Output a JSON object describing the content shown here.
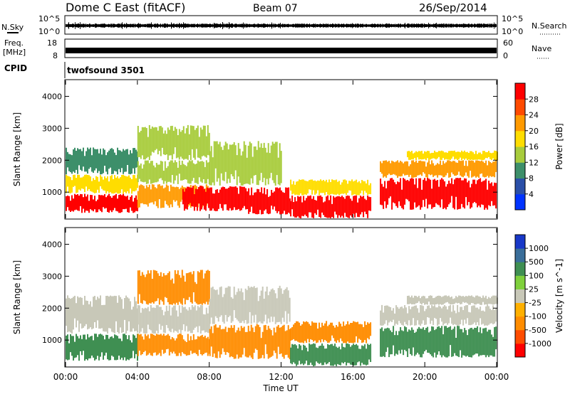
{
  "header": {
    "station": "Dome C East (fitACF)",
    "beam": "Beam 07",
    "date": "26/Sep/2014"
  },
  "strip_panels": {
    "nsky": {
      "label": "N.Sky",
      "right_label": "N.Search",
      "top_tick": "10^5",
      "bottom_tick": "10^0"
    },
    "freq": {
      "label_line1": "Freq.",
      "label_line2": "[MHz]",
      "top_tick": "18",
      "bottom_tick": "8",
      "right_label": "Nave",
      "right_top_tick": "60",
      "right_bottom_tick": "0"
    },
    "cpid": {
      "label": "CPID",
      "value": "twofsound 3501"
    }
  },
  "colors": {
    "power": [
      "#0033ff",
      "#2a4fa8",
      "#3d8f6a",
      "#a8cc3c",
      "#ffdd00",
      "#ff9a00",
      "#ff4a00",
      "#ff0000"
    ],
    "velocity": [
      "#ff0000",
      "#ff4c00",
      "#ff8c00",
      "#ffb000",
      "#c8c8b8",
      "#7fd03c",
      "#3f8f52",
      "#3a6e9a",
      "#1838c8"
    ]
  },
  "chart_data": [
    {
      "type": "heatmap",
      "panel": "power",
      "ylabel": "Slant Range [km]",
      "ylim": [
        180,
        4500
      ],
      "yticks": [
        "1000",
        "2000",
        "3000",
        "4000"
      ],
      "colorbar_label": "Power [dB]",
      "colorbar_ticks": [
        "4",
        "8",
        "12",
        "16",
        "20",
        "24",
        "28"
      ],
      "colorbar_range": [
        0,
        32
      ],
      "x_range_hours": [
        0,
        24
      ],
      "regions": [
        {
          "x0": 0.0,
          "x1": 4.0,
          "y0": 350,
          "y1": 950,
          "level": 7
        },
        {
          "x0": 0.0,
          "x1": 4.0,
          "y0": 950,
          "y1": 1550,
          "level": 4
        },
        {
          "x0": 0.0,
          "x1": 4.0,
          "y0": 1550,
          "y1": 2400,
          "level": 2
        },
        {
          "x0": 4.0,
          "x1": 8.0,
          "y0": 500,
          "y1": 1250,
          "level": 5
        },
        {
          "x0": 4.0,
          "x1": 8.0,
          "y0": 1250,
          "y1": 2000,
          "level": 3
        },
        {
          "x0": 4.0,
          "x1": 8.0,
          "y0": 2000,
          "y1": 3100,
          "level": 3
        },
        {
          "x0": 6.5,
          "x1": 10.0,
          "y0": 400,
          "y1": 1200,
          "level": 7
        },
        {
          "x0": 8.0,
          "x1": 12.0,
          "y0": 1200,
          "y1": 2600,
          "level": 3
        },
        {
          "x0": 10.0,
          "x1": 12.5,
          "y0": 300,
          "y1": 1150,
          "level": 7
        },
        {
          "x0": 12.5,
          "x1": 17.0,
          "y0": 180,
          "y1": 900,
          "level": 7
        },
        {
          "x0": 12.5,
          "x1": 17.0,
          "y0": 900,
          "y1": 1400,
          "level": 4
        },
        {
          "x0": 17.5,
          "x1": 24.0,
          "y0": 450,
          "y1": 1450,
          "level": 7
        },
        {
          "x0": 17.5,
          "x1": 24.0,
          "y0": 1450,
          "y1": 2000,
          "level": 5
        },
        {
          "x0": 19.0,
          "x1": 24.0,
          "y0": 2000,
          "y1": 2300,
          "level": 4
        }
      ]
    },
    {
      "type": "heatmap",
      "panel": "velocity",
      "ylabel": "Slant Range [km]",
      "ylim": [
        180,
        4500
      ],
      "yticks": [
        "1000",
        "2000",
        "3000",
        "4000"
      ],
      "xlabel": "Time UT",
      "xticks": [
        "00:00",
        "04:00",
        "08:00",
        "12:00",
        "16:00",
        "20:00",
        "00:00"
      ],
      "colorbar_label": "Velocity [m s^-1]",
      "colorbar_ticks": [
        "-1000",
        "-500",
        "-100",
        "-25",
        "25",
        "100",
        "500",
        "1000"
      ],
      "x_range_hours": [
        0,
        24
      ],
      "regions": [
        {
          "x0": 0.0,
          "x1": 4.0,
          "y0": 350,
          "y1": 1200,
          "level": 6
        },
        {
          "x0": 0.0,
          "x1": 4.0,
          "y0": 1200,
          "y1": 2400,
          "level": 4
        },
        {
          "x0": 4.0,
          "x1": 8.0,
          "y0": 500,
          "y1": 1200,
          "level": 2
        },
        {
          "x0": 4.0,
          "x1": 8.0,
          "y0": 1200,
          "y1": 2100,
          "level": 4
        },
        {
          "x0": 4.0,
          "x1": 8.0,
          "y0": 2100,
          "y1": 3200,
          "level": 2
        },
        {
          "x0": 8.0,
          "x1": 12.5,
          "y0": 400,
          "y1": 1500,
          "level": 2
        },
        {
          "x0": 8.0,
          "x1": 12.5,
          "y0": 1500,
          "y1": 2700,
          "level": 4
        },
        {
          "x0": 12.5,
          "x1": 17.0,
          "y0": 180,
          "y1": 900,
          "level": 6
        },
        {
          "x0": 12.5,
          "x1": 17.0,
          "y0": 900,
          "y1": 1600,
          "level": 2
        },
        {
          "x0": 17.5,
          "x1": 24.0,
          "y0": 450,
          "y1": 1450,
          "level": 6
        },
        {
          "x0": 17.5,
          "x1": 24.0,
          "y0": 1450,
          "y1": 2100,
          "level": 4
        },
        {
          "x0": 19.0,
          "x1": 24.0,
          "y0": 2100,
          "y1": 2400,
          "level": 4
        }
      ]
    }
  ]
}
